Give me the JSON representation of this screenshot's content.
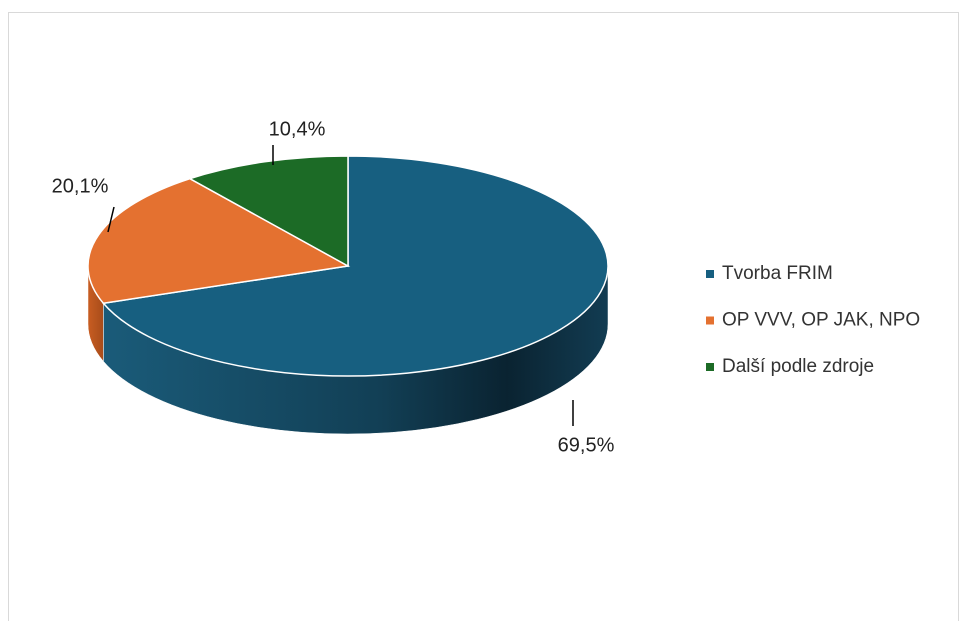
{
  "chart_data": {
    "type": "pie",
    "categories": [
      "Tvorba FRIM",
      "OP VVV, OP JAK, NPO",
      "Další podle zdroje"
    ],
    "values": [
      69.5,
      20.1,
      10.4
    ],
    "value_labels": [
      "69,5%",
      "20,1%",
      "10,4%"
    ],
    "colors": [
      "#175f80",
      "#e47130",
      "#1c6b26"
    ],
    "legend": "right"
  }
}
